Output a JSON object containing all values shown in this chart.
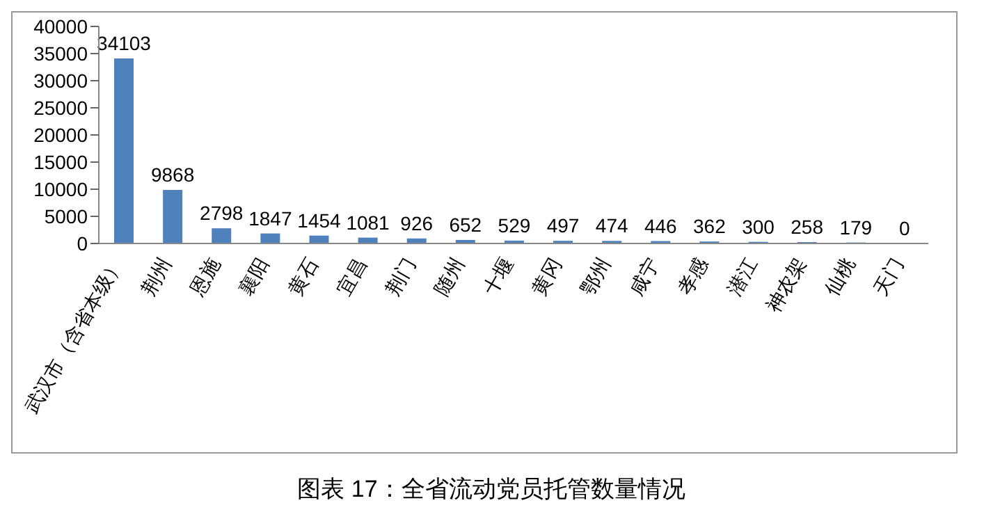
{
  "chart_data": {
    "type": "bar",
    "categories": [
      "武汉市（含省本级）",
      "荆州",
      "恩施",
      "襄阳",
      "黄石",
      "宜昌",
      "荆门",
      "随州",
      "十堰",
      "黄冈",
      "鄂州",
      "咸宁",
      "孝感",
      "潜江",
      "神农架",
      "仙桃",
      "天门"
    ],
    "values": [
      34103,
      9868,
      2798,
      1847,
      1454,
      1081,
      926,
      652,
      529,
      497,
      474,
      446,
      362,
      300,
      258,
      179,
      0
    ],
    "color": "#4f81bd",
    "ylim": [
      0,
      40000
    ],
    "yticks": [
      0,
      5000,
      10000,
      15000,
      20000,
      25000,
      30000,
      35000,
      40000
    ],
    "grid": false,
    "data_labels": true,
    "annotations": [
      "图表 17：全省流动党员托管数量情况"
    ]
  }
}
